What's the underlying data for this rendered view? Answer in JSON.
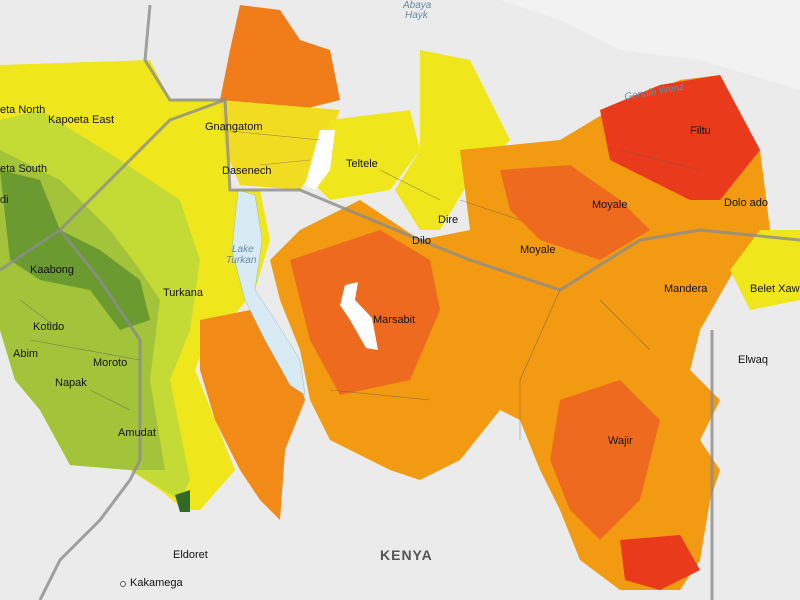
{
  "labels": [
    "Abaya",
    "Hayk",
    "Genale Wenz",
    "eta North",
    "Kapoeta East",
    "eta South",
    "di",
    "Gnangatom",
    "Dasenech",
    "Teltele",
    "Filtu",
    "Moyale",
    "Dolo ado",
    "Dire",
    "Dilo",
    "Moyale",
    "Kaabong",
    "Turkana",
    "Lake",
    "Turkan",
    "Mandera",
    "Belet Xaw",
    "Marsabit",
    "Kotido",
    "Abim",
    "Moroto",
    "Napak",
    "Elwaq",
    "Amudat",
    "Wajir",
    "Eldoret",
    "KENYA",
    "Kakamega"
  ]
}
